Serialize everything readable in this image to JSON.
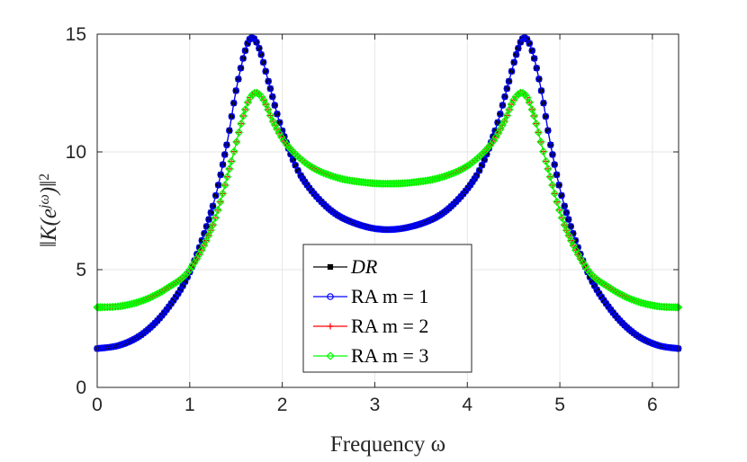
{
  "chart_data": {
    "type": "line",
    "title": "",
    "xlabel": "Frequency ω",
    "ylabel": "‖K(e",
    "ylabel_superscript": "jω",
    "ylabel_suffix": ")‖",
    "ylabel_power": "2",
    "xlim": [
      0,
      6.2832
    ],
    "ylim": [
      0,
      15
    ],
    "xticks": [
      0,
      1,
      2,
      3,
      4,
      5,
      6
    ],
    "xtick_labels": [
      "0",
      "1",
      "2",
      "3",
      "4",
      "5",
      "6"
    ],
    "yticks": [
      0,
      5,
      10,
      15
    ],
    "ytick_labels": [
      "0",
      "5",
      "10",
      "15"
    ],
    "grid": true,
    "legend_position": "bottom-center",
    "series": [
      {
        "name": "DR",
        "color": "#000000",
        "marker": "square",
        "x": [
          0,
          0.25,
          0.5,
          0.75,
          1.0,
          1.25,
          1.4,
          1.5,
          1.6,
          1.67,
          1.75,
          1.85,
          2.0,
          2.2,
          2.5,
          2.8,
          3.14,
          3.5,
          3.8,
          4.1,
          4.3,
          4.45,
          4.55,
          4.62,
          4.7,
          4.8,
          4.9,
          5.05,
          5.3,
          5.55,
          5.8,
          6.05,
          6.28
        ],
        "y": [
          1.65,
          1.8,
          2.3,
          3.3,
          4.9,
          7.7,
          10.3,
          12.6,
          14.3,
          14.85,
          14.4,
          13.0,
          10.9,
          9.0,
          7.6,
          6.95,
          6.7,
          6.95,
          7.6,
          9.0,
          10.9,
          13.0,
          14.4,
          14.85,
          14.3,
          12.6,
          10.3,
          7.7,
          4.9,
          3.3,
          2.3,
          1.8,
          1.65
        ]
      },
      {
        "name": "RA m = 1",
        "color": "#0000ff",
        "marker": "circle",
        "x": [
          0,
          0.25,
          0.5,
          0.75,
          1.0,
          1.25,
          1.4,
          1.5,
          1.6,
          1.67,
          1.75,
          1.85,
          2.0,
          2.2,
          2.5,
          2.8,
          3.14,
          3.5,
          3.8,
          4.1,
          4.3,
          4.45,
          4.55,
          4.62,
          4.7,
          4.8,
          4.9,
          5.05,
          5.3,
          5.55,
          5.8,
          6.05,
          6.28
        ],
        "y": [
          1.65,
          1.8,
          2.3,
          3.3,
          4.9,
          7.7,
          10.3,
          12.6,
          14.3,
          14.85,
          14.4,
          13.0,
          10.9,
          9.0,
          7.6,
          6.95,
          6.7,
          6.95,
          7.6,
          9.0,
          10.9,
          13.0,
          14.4,
          14.85,
          14.3,
          12.6,
          10.3,
          7.7,
          4.9,
          3.3,
          2.3,
          1.8,
          1.65
        ]
      },
      {
        "name": "RA m = 2",
        "color": "#ff0000",
        "marker": "plus",
        "x": [
          0,
          0.25,
          0.5,
          0.75,
          1.0,
          1.25,
          1.45,
          1.6,
          1.7,
          1.8,
          1.9,
          2.05,
          2.3,
          2.6,
          2.9,
          3.14,
          3.4,
          3.7,
          4.0,
          4.25,
          4.4,
          4.5,
          4.6,
          4.7,
          4.85,
          5.05,
          5.3,
          5.55,
          5.8,
          6.05,
          6.28
        ],
        "y": [
          3.4,
          3.45,
          3.7,
          4.2,
          5.0,
          6.9,
          9.6,
          11.8,
          12.5,
          12.2,
          11.3,
          10.3,
          9.4,
          8.9,
          8.7,
          8.65,
          8.7,
          8.9,
          9.4,
          10.3,
          11.3,
          12.2,
          12.5,
          11.8,
          9.6,
          6.9,
          5.0,
          4.2,
          3.7,
          3.45,
          3.4
        ]
      },
      {
        "name": "RA m = 3",
        "color": "#00ff00",
        "marker": "diamond",
        "x": [
          0,
          0.25,
          0.5,
          0.75,
          1.0,
          1.25,
          1.45,
          1.6,
          1.7,
          1.8,
          1.9,
          2.05,
          2.3,
          2.6,
          2.9,
          3.14,
          3.4,
          3.7,
          4.0,
          4.25,
          4.4,
          4.5,
          4.6,
          4.7,
          4.85,
          5.05,
          5.3,
          5.55,
          5.8,
          6.05,
          6.28
        ],
        "y": [
          3.4,
          3.45,
          3.7,
          4.2,
          5.0,
          6.9,
          9.6,
          11.8,
          12.5,
          12.2,
          11.3,
          10.3,
          9.4,
          8.9,
          8.7,
          8.65,
          8.7,
          8.9,
          9.4,
          10.3,
          11.3,
          12.2,
          12.5,
          11.8,
          9.6,
          6.9,
          5.0,
          4.2,
          3.7,
          3.45,
          3.4
        ]
      }
    ],
    "legend_labels": [
      {
        "text": "DR",
        "italic": true
      },
      {
        "text": "RA m = 1",
        "italic": false
      },
      {
        "text": "RA m = 2",
        "italic": false
      },
      {
        "text": "RA m = 3",
        "italic": false
      }
    ]
  }
}
